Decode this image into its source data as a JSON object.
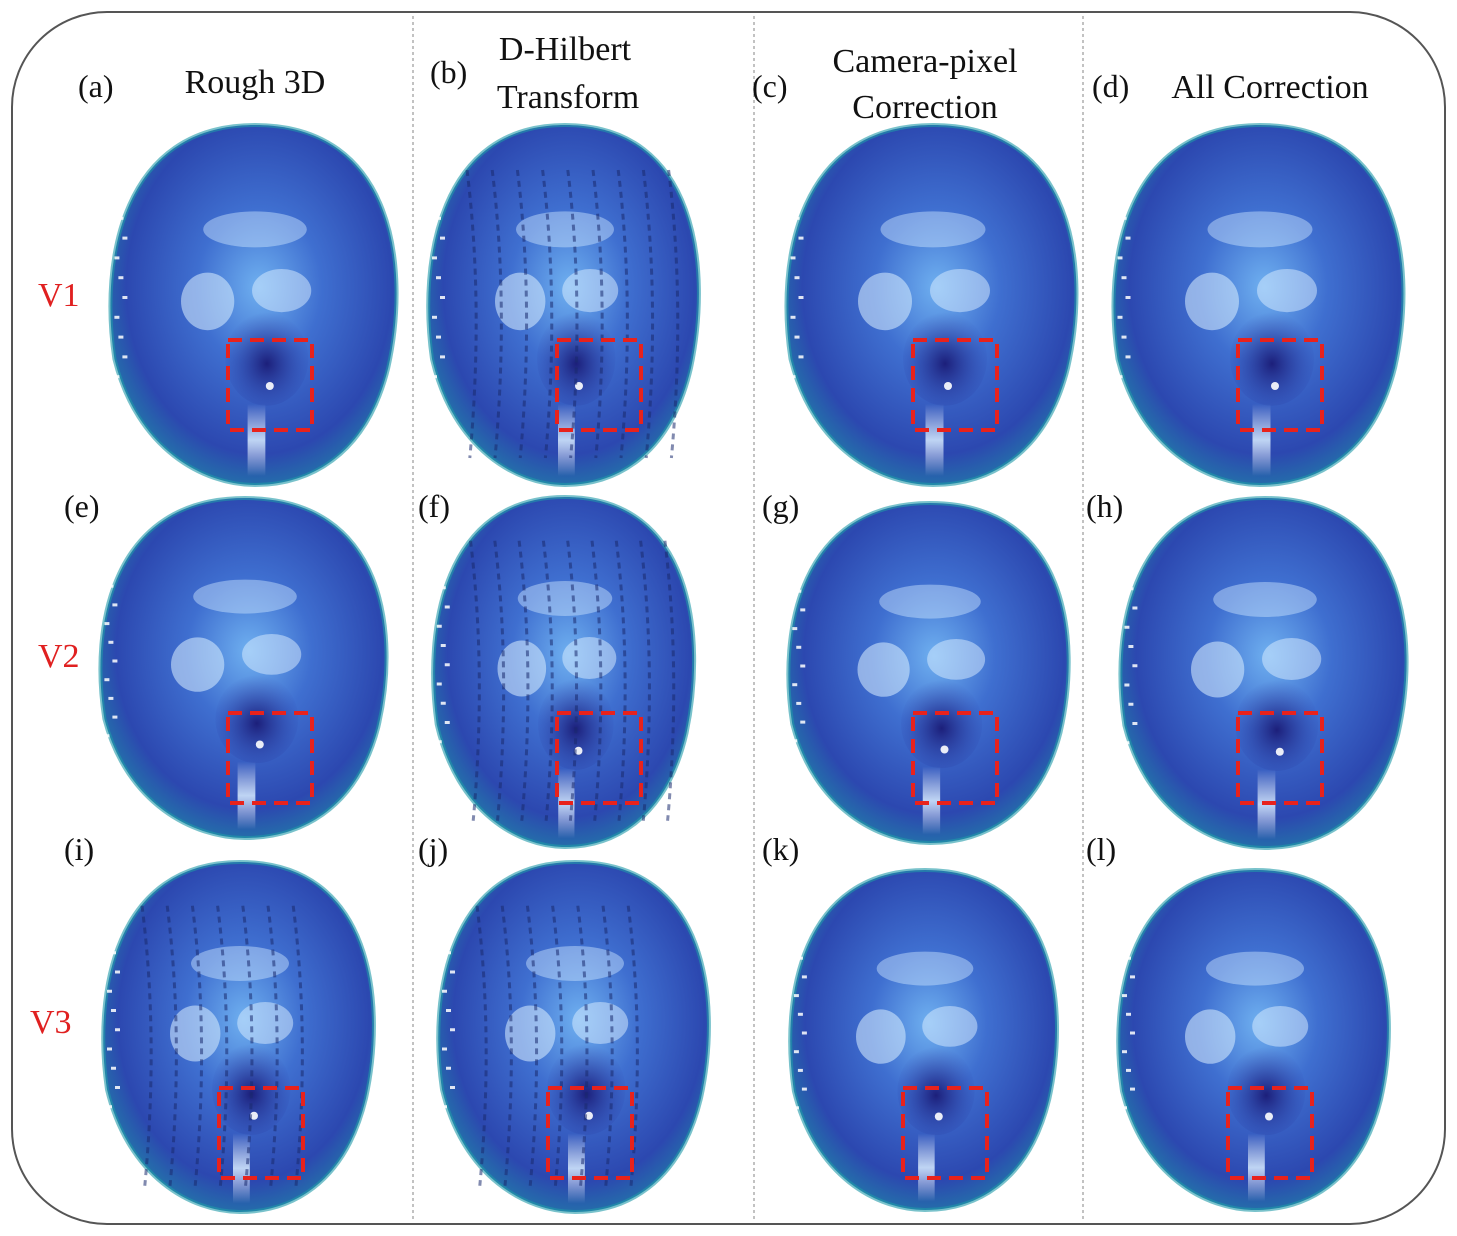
{
  "columns": [
    {
      "panel_label": "(a)",
      "title_lines": [
        "Rough 3D"
      ]
    },
    {
      "panel_label": "(b)",
      "title_lines": [
        "D-Hilbert",
        "Transform"
      ]
    },
    {
      "panel_label": "(c)",
      "title_lines": [
        "Camera-pixel",
        "Correction"
      ]
    },
    {
      "panel_label": "(d)",
      "title_lines": [
        "All Correction"
      ]
    }
  ],
  "rows": [
    {
      "label": "V1"
    },
    {
      "label": "V2"
    },
    {
      "label": "V3"
    }
  ],
  "panel_labels": [
    "(a)",
    "(b)",
    "(c)",
    "(d)",
    "(e)",
    "(f)",
    "(g)",
    "(h)",
    "(i)",
    "(j)",
    "(k)",
    "(l)"
  ],
  "colors": {
    "row_label": "#e02020",
    "highlight_box": "#e8221c",
    "face_dark": "#2a2f9a",
    "face_mid": "#3166c4",
    "face_light": "#5aa6e6",
    "face_edge": "#1f9aa8",
    "frame": "#555555",
    "divider": "#999999"
  }
}
